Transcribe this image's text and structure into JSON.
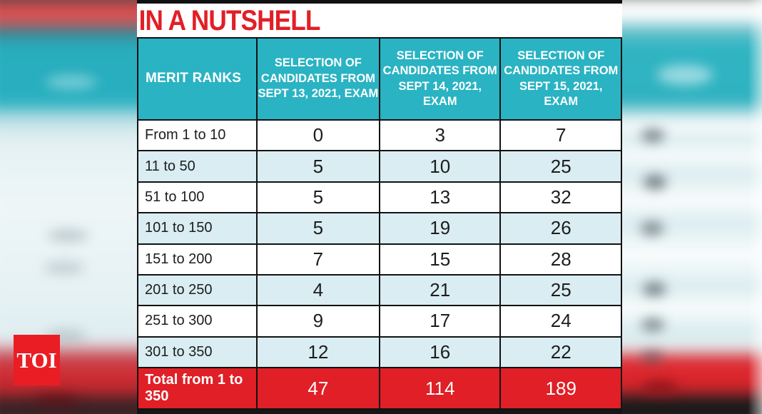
{
  "title": "IN A NUTSHELL",
  "watermark": {
    "logo": "TOI"
  },
  "colors": {
    "title_red": "#e21f26",
    "header_teal": "#2ab3c3",
    "row_alt_blue": "#d9edf2",
    "total_row_red": "#e01f26",
    "logo_red": "#ea1d25",
    "border_dark": "#121212"
  },
  "chart_data": {
    "type": "table",
    "title": "IN A NUTSHELL",
    "columns": [
      "MERIT RANKS",
      "SELECTION OF CANDIDATES FROM SEPT 13, 2021, EXAM",
      "SELECTION OF CANDIDATES FROM SEPT 14, 2021, EXAM",
      "SELECTION OF CANDIDATES FROM SEPT 15, 2021, EXAM"
    ],
    "rows": [
      {
        "label": "From 1 to 10",
        "values": [
          0,
          3,
          7
        ]
      },
      {
        "label": "11 to 50",
        "values": [
          5,
          10,
          25
        ]
      },
      {
        "label": "51 to 100",
        "values": [
          5,
          13,
          32
        ]
      },
      {
        "label": "101 to 150",
        "values": [
          5,
          19,
          26
        ]
      },
      {
        "label": "151 to 200",
        "values": [
          7,
          15,
          28
        ]
      },
      {
        "label": "201 to 250",
        "values": [
          4,
          21,
          25
        ]
      },
      {
        "label": "251 to 300",
        "values": [
          9,
          17,
          24
        ]
      },
      {
        "label": "301 to 350",
        "values": [
          12,
          16,
          22
        ]
      }
    ],
    "total_row": {
      "label": "Total from 1 to 350",
      "values": [
        47,
        114,
        189
      ]
    }
  }
}
